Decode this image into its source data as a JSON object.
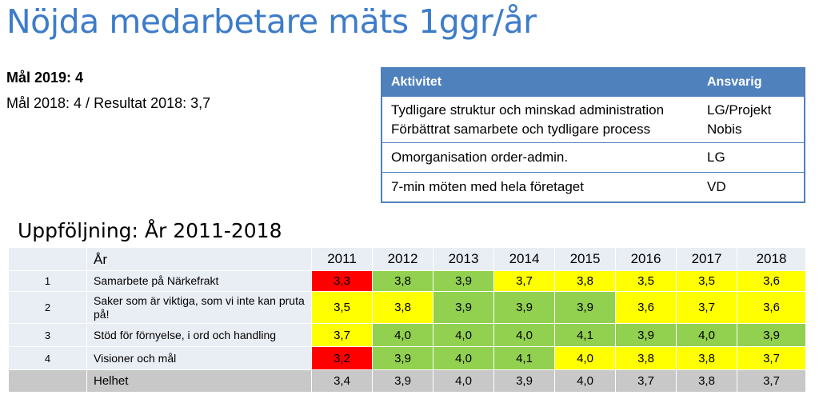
{
  "title": "Nöjda medarbetare mäts 1ggr/år",
  "goal_2019": "Mål 2019: 4",
  "goal_2018": "Mål 2018: 4 / Resultat 2018: 3,7",
  "activity_table": {
    "headers": {
      "activity": "Aktivitet",
      "responsible": "Ansvarig"
    },
    "rows": [
      {
        "activity_lines": [
          "Tydligare struktur och minskad administration",
          "Förbättrat samarbete och tydligare process"
        ],
        "responsible_lines": [
          "LG/Projekt",
          "Nobis"
        ]
      },
      {
        "activity_lines": [
          "Omorganisation order-admin."
        ],
        "responsible_lines": [
          "LG"
        ]
      },
      {
        "activity_lines": [
          "7-min möten med hela företaget"
        ],
        "responsible_lines": [
          "VD"
        ]
      }
    ]
  },
  "followup_title": "Uppföljning: År 2011-2018",
  "followup_table": {
    "header_label": "År",
    "years": [
      "2011",
      "2012",
      "2013",
      "2014",
      "2015",
      "2016",
      "2017",
      "2018"
    ],
    "rows": [
      {
        "num": "1",
        "label": "Samarbete på Närkefrakt",
        "values": [
          "3,3",
          "3,8",
          "3,9",
          "3,7",
          "3,8",
          "3,5",
          "3,5",
          "3,6"
        ],
        "colors": [
          "#ff0000",
          "#92d050",
          "#92d050",
          "#ffff00",
          "#ffff00",
          "#ffff00",
          "#ffff00",
          "#ffff00"
        ]
      },
      {
        "num": "2",
        "label": "Saker som är viktiga, som vi inte kan pruta på!",
        "values": [
          "3,5",
          "3,8",
          "3,9",
          "3,9",
          "3,9",
          "3,6",
          "3,7",
          "3,6"
        ],
        "colors": [
          "#ffff00",
          "#ffff00",
          "#92d050",
          "#92d050",
          "#92d050",
          "#ffff00",
          "#ffff00",
          "#ffff00"
        ]
      },
      {
        "num": "3",
        "label": "Stöd för förnyelse, i ord och handling",
        "values": [
          "3,7",
          "4,0",
          "4,0",
          "4,0",
          "4,1",
          "3,9",
          "4,0",
          "3,9"
        ],
        "colors": [
          "#ffff00",
          "#92d050",
          "#92d050",
          "#92d050",
          "#92d050",
          "#92d050",
          "#92d050",
          "#92d050"
        ]
      },
      {
        "num": "4",
        "label": "Visioner och mål",
        "values": [
          "3,2",
          "3,9",
          "4,0",
          "4,1",
          "4,0",
          "3,8",
          "3,8",
          "3,7"
        ],
        "colors": [
          "#ff0000",
          "#92d050",
          "#92d050",
          "#92d050",
          "#ffff00",
          "#ffff00",
          "#ffff00",
          "#ffff00"
        ]
      }
    ],
    "total": {
      "label": "Helhet",
      "values": [
        "3,4",
        "3,9",
        "4,0",
        "3,9",
        "4,0",
        "3,7",
        "3,8",
        "3,7"
      ]
    }
  }
}
